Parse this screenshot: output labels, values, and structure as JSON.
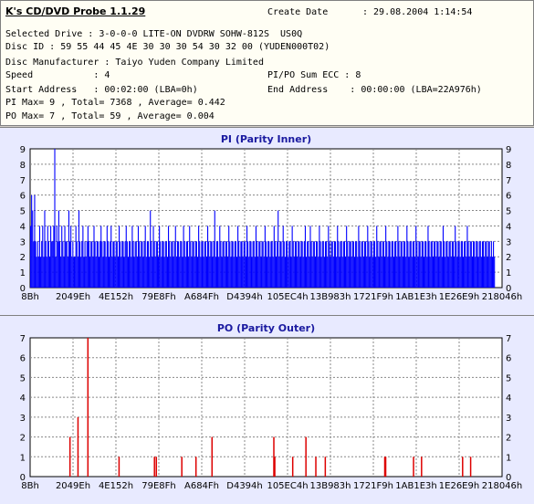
{
  "info": {
    "app_title": "K's CD/DVD Probe 1.1.29",
    "create_date_label": "Create Date",
    "create_date_value": ": 29.08.2004 1:14:54",
    "selected_drive": "Selected Drive : 3-0-0-0 LITE-ON DVDRW SOHW-812S  US0Q",
    "disc_id": "Disc ID : 59 55 44 45 4E 30 30 30 54 30 32 00 (YUDEN000T02)",
    "disc_manufacturer": "Disc Manufacturer : Taiyo Yuden Company Limited",
    "speed": "Speed           : 4",
    "pipo_sum": "PI/PO Sum ECC : 8",
    "start_address": "Start Address   : 00:02:00 (LBA=0h)",
    "end_address": "End Address    : 00:00:00 (LBA=22A976h)",
    "pi_stats": "PI Max= 9 , Total= 7368 , Average= 0.442",
    "po_stats": "PO Max= 7 , Total= 59 , Average= 0.004"
  },
  "colors": {
    "pi_bar": "#0000ff",
    "po_bar": "#dd0000",
    "title": "#1a1aa0",
    "panel_bg": "#e8eaff",
    "plot_bg": "#ffffff"
  },
  "chart_data": [
    {
      "type": "bar",
      "title": "PI (Parity Inner)",
      "x_ticks": [
        "8Bh",
        "2049Eh",
        "4E152h",
        "79E8Fh",
        "A684Fh",
        "D4394h",
        "105EC4h",
        "13B983h",
        "1721F9h",
        "1AB1E3h",
        "1E26E9h",
        "218046h"
      ],
      "ylim": [
        0,
        9
      ],
      "y_ticks": [
        0,
        1,
        2,
        3,
        4,
        5,
        6,
        7,
        8,
        9
      ],
      "grid": true,
      "series": [
        {
          "values": [
            4,
            6,
            5,
            3,
            6,
            3,
            2,
            3,
            2,
            4,
            2,
            3,
            4,
            2,
            5,
            3,
            2,
            4,
            3,
            2,
            4,
            3,
            3,
            4,
            9,
            2,
            4,
            3,
            5,
            3,
            2,
            4,
            3,
            2,
            4,
            3,
            3,
            2,
            5,
            3,
            4,
            2,
            3,
            2,
            2,
            4,
            3,
            2,
            5,
            3,
            2,
            3,
            4,
            2,
            3,
            2,
            3,
            4,
            3,
            2,
            3,
            3,
            2,
            4,
            3,
            2,
            3,
            3,
            2,
            3,
            4,
            3,
            2,
            3,
            3,
            2,
            4,
            3,
            2,
            3,
            4,
            2,
            3,
            3,
            2,
            3,
            3,
            2,
            4,
            3,
            2,
            3,
            3,
            2,
            3,
            4,
            3,
            2,
            3,
            3,
            2,
            4,
            3,
            2,
            3,
            3,
            2,
            4,
            3,
            2,
            3,
            3,
            2,
            3,
            4,
            2,
            3,
            3,
            2,
            5,
            3,
            2,
            4,
            3,
            2,
            3,
            3,
            2,
            4,
            3,
            2,
            3,
            3,
            2,
            3,
            3,
            2,
            4,
            3,
            2,
            3,
            3,
            2,
            3,
            4,
            2,
            3,
            3,
            2,
            3,
            3,
            2,
            4,
            3,
            2,
            3,
            3,
            2,
            4,
            3,
            2,
            3,
            3,
            2,
            3,
            3,
            2,
            4,
            3,
            2,
            3,
            3,
            2,
            3,
            3,
            2,
            4,
            3,
            2,
            3,
            3,
            2,
            3,
            5,
            2,
            3,
            3,
            2,
            4,
            3,
            2,
            3,
            3,
            2,
            3,
            3,
            2,
            4,
            3,
            2,
            3,
            3,
            2,
            3,
            3,
            2,
            4,
            3,
            2,
            3,
            3,
            2,
            3,
            3,
            2,
            4,
            3,
            2,
            3,
            3,
            2,
            3,
            3,
            2,
            4,
            3,
            2,
            3,
            3,
            2,
            3,
            3,
            2,
            4,
            3,
            2,
            3,
            3,
            2,
            3,
            3,
            2,
            4,
            3,
            2,
            3,
            5,
            2,
            3,
            3,
            2,
            4,
            3,
            2,
            3,
            3,
            2,
            3,
            3,
            2,
            4,
            3,
            2,
            3,
            3,
            2,
            3,
            3,
            2,
            3,
            3,
            2,
            3,
            4,
            2,
            3,
            3,
            2,
            4,
            3,
            2,
            3,
            3,
            2,
            3,
            3,
            2,
            4,
            3,
            2,
            3,
            3,
            2,
            3,
            3,
            2,
            4,
            3,
            2,
            3,
            3,
            2,
            3,
            3,
            2,
            4,
            3,
            2,
            3,
            3,
            2,
            3,
            3,
            2,
            4,
            3,
            2,
            3,
            3,
            2,
            3,
            3,
            2,
            3,
            3,
            2,
            4,
            3,
            2,
            3,
            3,
            2,
            3,
            3,
            2,
            4,
            3,
            2,
            3,
            3,
            2,
            3,
            3,
            2,
            4,
            3,
            2,
            3,
            3,
            2,
            3,
            3,
            2,
            4,
            3,
            2,
            3,
            3,
            2,
            3,
            3,
            2,
            3,
            3,
            2,
            4,
            3,
            2,
            3,
            3,
            2,
            3,
            3,
            2,
            4,
            3,
            2,
            3,
            3,
            2,
            3,
            3,
            2,
            4,
            3,
            2,
            3,
            3,
            2,
            3,
            3,
            2,
            3,
            3,
            2,
            4,
            3,
            2,
            3,
            3,
            2,
            3,
            3,
            2,
            3,
            3,
            2,
            3,
            3,
            2,
            4,
            3,
            2,
            3,
            3,
            2,
            3,
            3,
            2,
            3,
            3,
            2,
            4,
            3,
            2,
            3,
            3,
            2,
            3,
            3,
            2,
            3,
            3,
            2,
            4,
            3,
            2,
            3,
            3,
            2,
            3,
            3,
            2,
            3,
            3,
            2,
            3,
            3,
            2,
            3,
            3,
            2,
            3,
            3,
            2,
            3,
            3,
            2,
            3,
            2,
            3,
            2
          ]
        }
      ]
    },
    {
      "type": "bar",
      "title": "PO (Parity Outer)",
      "x_ticks": [
        "8Bh",
        "2049Eh",
        "4E152h",
        "79E8Fh",
        "A684Fh",
        "D4394h",
        "105EC4h",
        "13B983h",
        "1721F9h",
        "1AB1E3h",
        "1E26E9h",
        "218046h"
      ],
      "ylim": [
        0,
        7
      ],
      "y_ticks": [
        0,
        1,
        2,
        3,
        4,
        5,
        6,
        7
      ],
      "grid": true,
      "series": [
        {
          "values": [
            0,
            0,
            0,
            0,
            0,
            0,
            0,
            0,
            0,
            0,
            0,
            0,
            0,
            0,
            0,
            0,
            0,
            0,
            0,
            0,
            0,
            0,
            0,
            0,
            0,
            0,
            0,
            0,
            0,
            0,
            0,
            0,
            0,
            0,
            0,
            0,
            0,
            0,
            0,
            0,
            0,
            0,
            0,
            0,
            0,
            0,
            0,
            0,
            0,
            0,
            0,
            0,
            0,
            0,
            0,
            0,
            0,
            0,
            0,
            0,
            0,
            0,
            0,
            0,
            0,
            0,
            0,
            0,
            0,
            0,
            0,
            0,
            0,
            0,
            0,
            0,
            0,
            0,
            0,
            0,
            0,
            0,
            0,
            0,
            0,
            0,
            0,
            0,
            0,
            0,
            0,
            0,
            0,
            0,
            0,
            0,
            0,
            0,
            0,
            0,
            0,
            0,
            0,
            0,
            0,
            0,
            0,
            0,
            0,
            0,
            0,
            0,
            0,
            0,
            0,
            0,
            0,
            0,
            0,
            0,
            0,
            0,
            0,
            0,
            0,
            0,
            0,
            0,
            0,
            0,
            0,
            0,
            0,
            0,
            0,
            0,
            0,
            0,
            0,
            0,
            0,
            0,
            0,
            0,
            0,
            0,
            0,
            0,
            0,
            0,
            0,
            0,
            0,
            0,
            0,
            0,
            0,
            0,
            0,
            0,
            0,
            0,
            0,
            0,
            0,
            0,
            0,
            0,
            0,
            0,
            0,
            0,
            0,
            0,
            0,
            0,
            0,
            0,
            0,
            0,
            0,
            0,
            0,
            0,
            0,
            0,
            0,
            0,
            0,
            0,
            0,
            0,
            0,
            0,
            0,
            0,
            0,
            0,
            0,
            0,
            0,
            0,
            0,
            0,
            0,
            0,
            0,
            0,
            0,
            0,
            0,
            0,
            0,
            0,
            0,
            0,
            0,
            0,
            0,
            0,
            0,
            0,
            0,
            0,
            0,
            0,
            0,
            0,
            0,
            0,
            0,
            0,
            0,
            0,
            0,
            0,
            0,
            0,
            0,
            0,
            0,
            0,
            0,
            0,
            0,
            0,
            0,
            0,
            0,
            0,
            0,
            0,
            0,
            0,
            0,
            0,
            0,
            0,
            0,
            0,
            0,
            0,
            0,
            0,
            0,
            0,
            0,
            0,
            0,
            0,
            0,
            0,
            0,
            0,
            0,
            0,
            0,
            0,
            0,
            0,
            0,
            0,
            0,
            0,
            0,
            0,
            0,
            0,
            0,
            0,
            0,
            0,
            0,
            0,
            0,
            0,
            0,
            0,
            0,
            0,
            0,
            0,
            0,
            0,
            0,
            0,
            0,
            0,
            0,
            0,
            0,
            0,
            0,
            0,
            0,
            0,
            0,
            0,
            0,
            0,
            0,
            0,
            0,
            0,
            0,
            0,
            0,
            0,
            0,
            0,
            0,
            0,
            0,
            0,
            0,
            0,
            0,
            0,
            0,
            0,
            0,
            0,
            0,
            0,
            0,
            0,
            0,
            0,
            0,
            0,
            0,
            0,
            0,
            0,
            0,
            0,
            0,
            0,
            0,
            0,
            0,
            0,
            0,
            0,
            0,
            0,
            0,
            0,
            0,
            0,
            0,
            0,
            0,
            0,
            0,
            0,
            0,
            0,
            0,
            0,
            0,
            0,
            0,
            0,
            0,
            0,
            0,
            0,
            0,
            0,
            0,
            0,
            0,
            0,
            0,
            0,
            0,
            0,
            0,
            0,
            0,
            0,
            0,
            0,
            0,
            0,
            0,
            0,
            0,
            0,
            0,
            0,
            0,
            0,
            0,
            0,
            0,
            0,
            0,
            0,
            0,
            0,
            0,
            0,
            0,
            0,
            0,
            0,
            0,
            0,
            0,
            0,
            0,
            0,
            0,
            0,
            0,
            0,
            0,
            0,
            0,
            0,
            0,
            0,
            0,
            0,
            0,
            0,
            0,
            0,
            0,
            0,
            0,
            0,
            0,
            0,
            0,
            0,
            0,
            0,
            0,
            0,
            0,
            0,
            0,
            0,
            0,
            0,
            0,
            0,
            0,
            0,
            0,
            0,
            0,
            0,
            0,
            0,
            0,
            0,
            0,
            0,
            0,
            0,
            0,
            0,
            0,
            0,
            0,
            0,
            0,
            0,
            0,
            0,
            0,
            0,
            0,
            0,
            0,
            0,
            0,
            0,
            0,
            0,
            0,
            0,
            0,
            0,
            0,
            0,
            0,
            0,
            0,
            0,
            0,
            0,
            0,
            0,
            0,
            0,
            0,
            0,
            0,
            0,
            0,
            0,
            0,
            0,
            0,
            0,
            0,
            0,
            0,
            0,
            0,
            0,
            0,
            0,
            0,
            0,
            0,
            0,
            0,
            0,
            0,
            0,
            0,
            0,
            0,
            0,
            0,
            0,
            0,
            0,
            0,
            0,
            0,
            0,
            0,
            0,
            0,
            0,
            0,
            0,
            0
          ],
          "spikes": [
            [
              0.083,
              2
            ],
            [
              0.1,
              3
            ],
            [
              0.121,
              7
            ],
            [
              0.187,
              1
            ],
            [
              0.262,
              1
            ],
            [
              0.266,
              1
            ],
            [
              0.32,
              1
            ],
            [
              0.35,
              1
            ],
            [
              0.384,
              2
            ],
            [
              0.515,
              2
            ],
            [
              0.517,
              1
            ],
            [
              0.555,
              1
            ],
            [
              0.583,
              2
            ],
            [
              0.604,
              1
            ],
            [
              0.624,
              1
            ],
            [
              0.75,
              1
            ],
            [
              0.752,
              1
            ],
            [
              0.811,
              1
            ],
            [
              0.828,
              1
            ],
            [
              0.915,
              1
            ],
            [
              0.932,
              1
            ]
          ]
        }
      ]
    }
  ]
}
